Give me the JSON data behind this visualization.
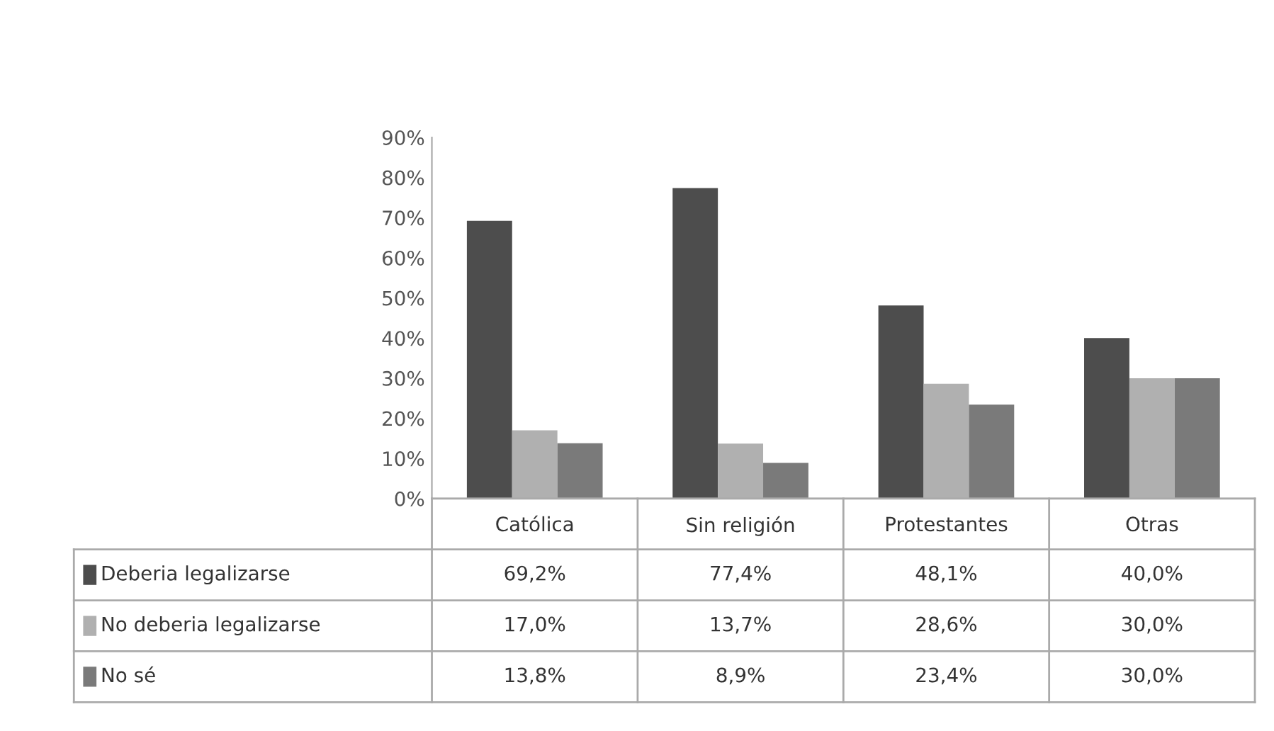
{
  "chart_data": {
    "type": "bar",
    "categories": [
      "Católica",
      "Sin religión",
      "Protestantes",
      "Otras"
    ],
    "series": [
      {
        "name": "Deberia legalizarse",
        "color": "#4d4d4d",
        "values": [
          69.2,
          77.4,
          48.1,
          40.0
        ],
        "value_labels": [
          "69,2%",
          "77,4%",
          "48,1%",
          "40,0%"
        ]
      },
      {
        "name": "No deberia legalizarse",
        "color": "#b0b0b0",
        "values": [
          17.0,
          13.7,
          28.6,
          30.0
        ],
        "value_labels": [
          "17,0%",
          "13,7%",
          "28,6%",
          "30,0%"
        ]
      },
      {
        "name": "No sé",
        "color": "#7a7a7a",
        "values": [
          13.8,
          8.9,
          23.4,
          30.0
        ],
        "value_labels": [
          "13,8%",
          "8,9%",
          "23,4%",
          "30,0%"
        ]
      }
    ],
    "ylim": [
      0,
      90
    ],
    "yticks": [
      {
        "value": 0,
        "label": "0%"
      },
      {
        "value": 10,
        "label": "10%"
      },
      {
        "value": 20,
        "label": "20%"
      },
      {
        "value": 30,
        "label": "30%"
      },
      {
        "value": 40,
        "label": "40%"
      },
      {
        "value": 50,
        "label": "50%"
      },
      {
        "value": 60,
        "label": "60%"
      },
      {
        "value": 70,
        "label": "70%"
      },
      {
        "value": 80,
        "label": "80%"
      },
      {
        "value": 90,
        "label": "90%"
      }
    ],
    "grid": false,
    "legend": "bottom"
  }
}
